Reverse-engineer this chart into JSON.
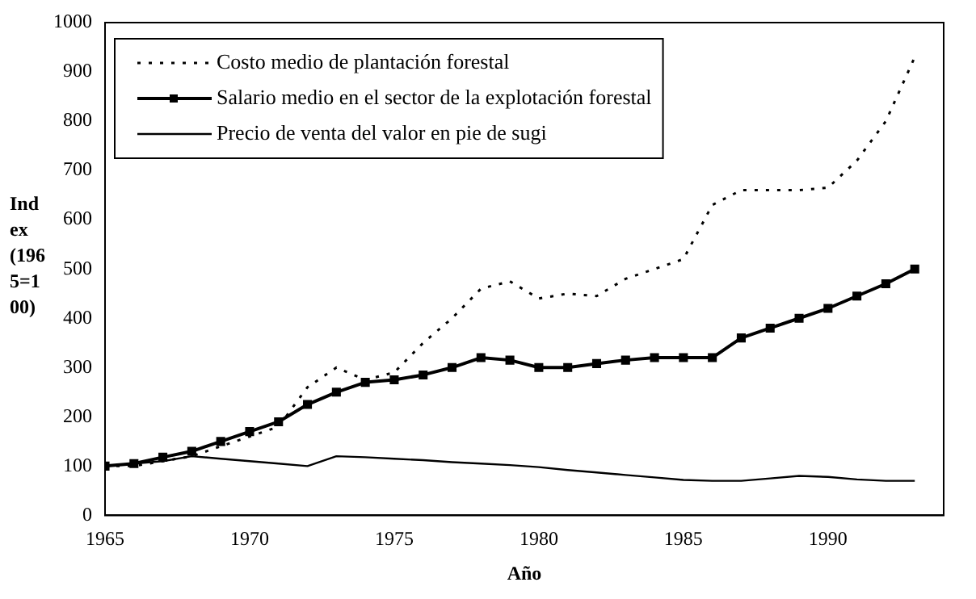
{
  "chart_data": {
    "type": "line",
    "xlabel": "Año",
    "ylabel": "Index (1965=100)",
    "x": [
      1965,
      1966,
      1967,
      1968,
      1969,
      1970,
      1971,
      1972,
      1973,
      1974,
      1975,
      1976,
      1977,
      1978,
      1979,
      1980,
      1981,
      1982,
      1983,
      1984,
      1985,
      1986,
      1987,
      1988,
      1989,
      1990,
      1991,
      1992,
      1993
    ],
    "xlim": [
      1965,
      1994
    ],
    "xticks": [
      1965,
      1970,
      1975,
      1980,
      1985,
      1990
    ],
    "ylim": [
      0,
      1000
    ],
    "yticks": [
      0,
      100,
      200,
      300,
      400,
      500,
      600,
      700,
      800,
      900,
      1000
    ],
    "grid": false,
    "legend": "top left",
    "series": [
      {
        "name": "Costo medio de plantación forestal",
        "color": "#000000",
        "line_style": "dotted",
        "marker": "none",
        "values": [
          100,
          100,
          110,
          120,
          140,
          160,
          180,
          260,
          300,
          275,
          290,
          350,
          400,
          460,
          475,
          440,
          450,
          445,
          480,
          500,
          520,
          630,
          660,
          660,
          660,
          665,
          720,
          800,
          930
        ]
      },
      {
        "name": "Salario medio en el sector de la explotación forestal",
        "color": "#000000",
        "line_style": "solid",
        "marker": "square",
        "values": [
          100,
          105,
          118,
          130,
          150,
          170,
          190,
          225,
          250,
          270,
          275,
          285,
          300,
          320,
          315,
          300,
          300,
          308,
          315,
          320,
          320,
          320,
          360,
          380,
          400,
          420,
          445,
          470,
          500
        ]
      },
      {
        "name": "Precio de venta del valor en pie de sugi",
        "color": "#000000",
        "line_style": "solid",
        "marker": "none",
        "values": [
          100,
          105,
          110,
          120,
          115,
          110,
          105,
          100,
          120,
          118,
          115,
          112,
          108,
          105,
          102,
          98,
          92,
          87,
          82,
          77,
          72,
          70,
          70,
          75,
          80,
          78,
          73,
          70,
          70
        ]
      }
    ]
  }
}
